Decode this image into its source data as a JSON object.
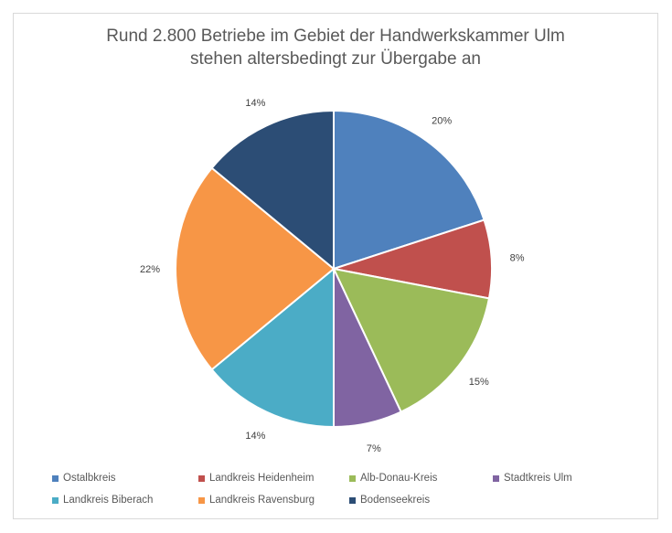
{
  "chart_data": {
    "type": "pie",
    "title_line1": "Rund 2.800 Betriebe im Gebiet der Handwerkskammer Ulm",
    "title_line2": "stehen altersbedingt zur Übergabe an",
    "categories": [
      "Ostalbkreis",
      "Landkreis Heidenheim",
      "Alb-Donau-Kreis",
      "Stadtkreis Ulm",
      "Landkreis Biberach",
      "Landkreis Ravensburg",
      "Bodenseekreis"
    ],
    "values": [
      20,
      8,
      15,
      7,
      14,
      22,
      14
    ],
    "labels": [
      "20%",
      "8%",
      "15%",
      "7%",
      "14%",
      "22%",
      "14%"
    ],
    "colors": [
      "#4f81bd",
      "#c0504d",
      "#9bbb59",
      "#8064a2",
      "#4bacc6",
      "#f79646",
      "#2c4d75"
    ],
    "legend_position": "bottom"
  }
}
